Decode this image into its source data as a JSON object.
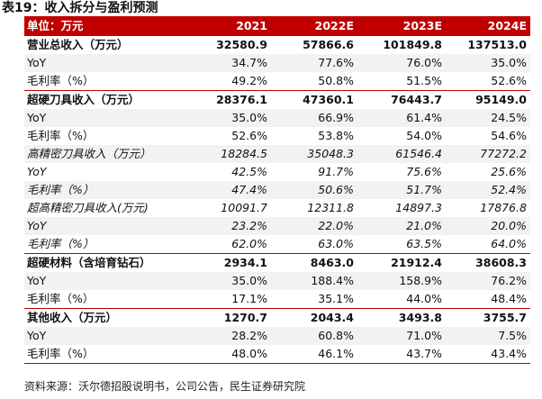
{
  "title": "表19：收入拆分与盈利预测",
  "columns": [
    "单位：万元",
    "2021",
    "2022E",
    "2023E",
    "2024E"
  ],
  "rows": [
    {
      "label": "营业总收入（万元）",
      "values": [
        "32580.9",
        "57866.6",
        "101849.8",
        "137513.0"
      ],
      "kind": "section",
      "italic": false
    },
    {
      "label": "YoY",
      "values": [
        "34.7%",
        "77.6%",
        "76.0%",
        "35.0%"
      ],
      "kind": "sub",
      "italic": false
    },
    {
      "label": "毛利率（%）",
      "values": [
        "49.2%",
        "50.8%",
        "51.5%",
        "52.6%"
      ],
      "kind": "plain",
      "italic": false
    },
    {
      "label": "超硬刀具收入（万元）",
      "values": [
        "28376.1",
        "47360.1",
        "76443.7",
        "95149.0"
      ],
      "kind": "section",
      "italic": false
    },
    {
      "label": "YoY",
      "values": [
        "35.0%",
        "66.9%",
        "61.4%",
        "24.5%"
      ],
      "kind": "sub",
      "italic": false
    },
    {
      "label": "毛利率（%）",
      "values": [
        "52.6%",
        "53.8%",
        "54.0%",
        "54.6%"
      ],
      "kind": "plain",
      "italic": false
    },
    {
      "label": "高精密刀具收入（万元）",
      "values": [
        "18284.5",
        "35048.3",
        "61546.4",
        "77272.2"
      ],
      "kind": "sub",
      "italic": true
    },
    {
      "label": "YoY",
      "values": [
        "42.5%",
        "91.7%",
        "75.6%",
        "25.6%"
      ],
      "kind": "plain",
      "italic": true
    },
    {
      "label": "毛利率（%）",
      "values": [
        "47.4%",
        "50.6%",
        "51.7%",
        "52.4%"
      ],
      "kind": "sub",
      "italic": true
    },
    {
      "label": "超高精密刀具收入(万元)",
      "values": [
        "10091.7",
        "12311.8",
        "14897.3",
        "17876.8"
      ],
      "kind": "plain",
      "italic": true
    },
    {
      "label": "YoY",
      "values": [
        "23.2%",
        "22.0%",
        "21.0%",
        "20.0%"
      ],
      "kind": "sub",
      "italic": true
    },
    {
      "label": "毛利率（%）",
      "values": [
        "62.0%",
        "63.0%",
        "63.5%",
        "64.0%"
      ],
      "kind": "plain",
      "italic": true
    },
    {
      "label": "超硬材料（含培育钻石）",
      "values": [
        "2934.1",
        "8463.0",
        "21912.4",
        "38608.3"
      ],
      "kind": "section",
      "italic": false
    },
    {
      "label": "YoY",
      "values": [
        "35.0%",
        "188.4%",
        "158.9%",
        "76.2%"
      ],
      "kind": "sub",
      "italic": false
    },
    {
      "label": "毛利率（%）",
      "values": [
        "17.1%",
        "35.1%",
        "44.0%",
        "48.4%"
      ],
      "kind": "plain",
      "italic": false
    },
    {
      "label": "其他收入（万元）",
      "values": [
        "1270.7",
        "2043.4",
        "3493.8",
        "3755.7"
      ],
      "kind": "section",
      "italic": false
    },
    {
      "label": "YoY",
      "values": [
        "28.2%",
        "60.8%",
        "71.0%",
        "7.5%"
      ],
      "kind": "sub",
      "italic": false
    },
    {
      "label": "毛利率（%）",
      "values": [
        "48.0%",
        "46.1%",
        "43.7%",
        "43.4%"
      ],
      "kind": "plain",
      "italic": false
    }
  ],
  "footnote": "资料来源：沃尔德招股说明书，公司公告，民生证券研究院"
}
